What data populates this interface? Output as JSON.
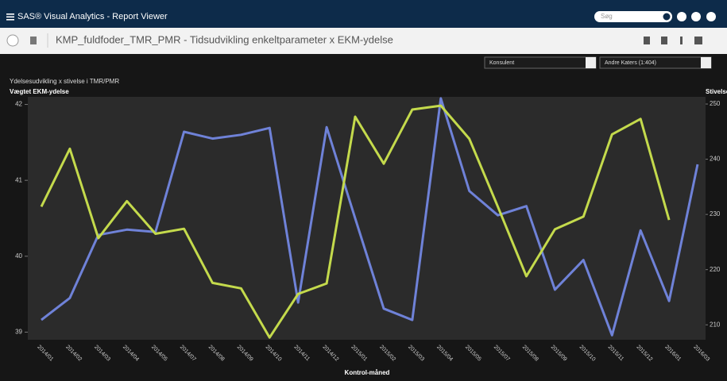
{
  "app": {
    "title": "SAS® Visual Analytics - Report Viewer",
    "search_placeholder": "Søg",
    "report_title": "KMP_fuldfoder_TMR_PMR - Tidsudvikling enkeltparameter x EKM-ydelse",
    "filters": [
      "Konsulent",
      "Andre Katers (1:404)"
    ]
  },
  "chart_data": {
    "type": "line",
    "title": "Ydelsesudvikling x stivelse i TMR/PMR",
    "x_label": "Kontrol-måned",
    "y_label": "Vægtet EKM-ydelse",
    "y2_label": "Stivelse",
    "categories": [
      "2014/01",
      "2014/02",
      "2014/03",
      "2014/04",
      "2014/05",
      "2014/07",
      "2014/08",
      "2014/09",
      "2014/10",
      "2014/11",
      "2014/12",
      "2015/01",
      "2015/02",
      "2015/03",
      "2015/04",
      "2015/05",
      "2015/07",
      "2015/08",
      "2015/09",
      "2015/10",
      "2015/11",
      "2015/12",
      "2016/01",
      "2016/03"
    ],
    "series": [
      {
        "name": "Vægtet EKM-ydelse",
        "color": "#6f82d8",
        "axis": "y",
        "values": [
          39.16,
          39.45,
          40.28,
          40.35,
          40.32,
          41.64,
          41.55,
          41.6,
          41.69,
          39.39,
          41.7,
          40.5,
          39.31,
          39.16,
          42.08,
          40.86,
          40.54,
          40.66,
          39.56,
          39.95,
          38.96,
          40.34,
          39.41,
          41.21
        ]
      },
      {
        "name": "Stivelse",
        "color": "#c4da4c",
        "axis": "y2",
        "values": [
          231.4,
          241.9,
          225.7,
          232.4,
          226.5,
          227.4,
          217.6,
          216.6,
          207.7,
          215.6,
          217.5,
          247.7,
          239.2,
          249,
          249.7,
          243.7,
          231.4,
          218.8,
          227.3,
          229.6,
          244.5,
          247.3,
          229,
          null
        ]
      }
    ],
    "ylim": [
      38.9,
      42.1
    ],
    "yticks": [
      39,
      40,
      41,
      42
    ],
    "y2lim": [
      207.3,
      251.3
    ],
    "y2ticks": [
      210,
      220,
      230,
      240,
      250
    ],
    "grid": false
  }
}
